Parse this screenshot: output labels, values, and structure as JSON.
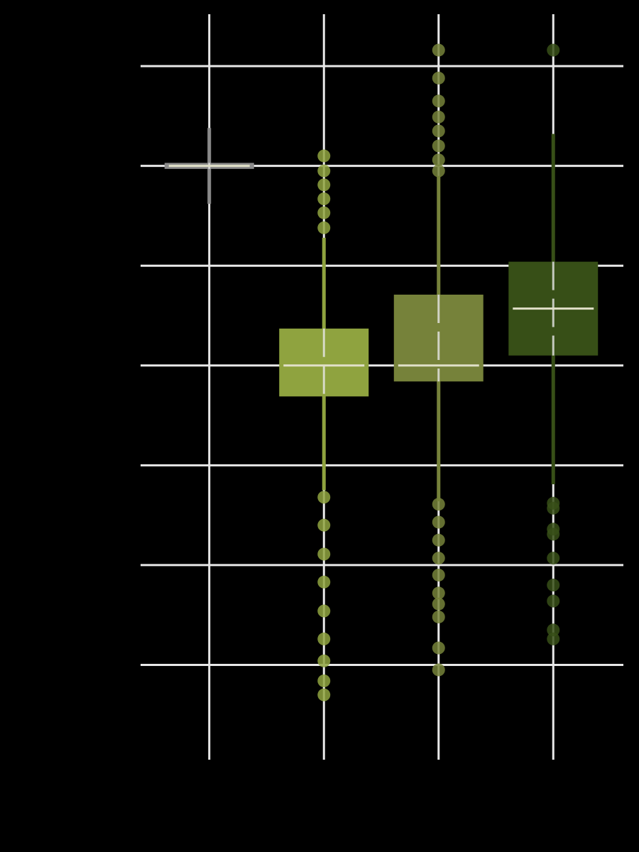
{
  "chart_data": {
    "type": "box",
    "categories": [
      null,
      null,
      null,
      null
    ],
    "ylim": [
      -0.95,
      6.52
    ],
    "yticks": [
      0,
      1,
      2,
      3,
      4,
      5,
      6
    ],
    "grid": true,
    "series": [
      {
        "color": "#8a8a8a",
        "low": 4.62,
        "q1": 4.97,
        "median": 5.0,
        "q3": 5.03,
        "high": 5.38,
        "outliers": []
      },
      {
        "color": "#8fa33f",
        "low": 1.75,
        "q1": 2.69,
        "median": 3.0,
        "q3": 3.37,
        "high": 4.28,
        "outliers": [
          5.1,
          4.95,
          4.81,
          4.67,
          4.53,
          4.38,
          1.68,
          1.4,
          1.11,
          0.83,
          0.54,
          0.26,
          0.04,
          -0.16,
          -0.3
        ]
      },
      {
        "color": "#76823a",
        "low": 1.64,
        "q1": 2.84,
        "median": 3.0,
        "q3": 3.71,
        "high": 4.9,
        "outliers": [
          6.16,
          5.88,
          5.65,
          5.49,
          5.35,
          5.2,
          5.06,
          4.95,
          1.61,
          1.43,
          1.25,
          1.07,
          0.9,
          0.72,
          0.61,
          0.48,
          0.17,
          -0.05
        ]
      },
      {
        "color": "#374f17",
        "low": 1.81,
        "q1": 3.1,
        "median": 3.57,
        "q3": 4.04,
        "high": 5.32,
        "outliers": [
          6.16,
          1.62,
          1.57,
          1.36,
          1.31,
          1.07,
          0.8,
          0.64,
          0.35,
          0.26
        ]
      }
    ]
  }
}
